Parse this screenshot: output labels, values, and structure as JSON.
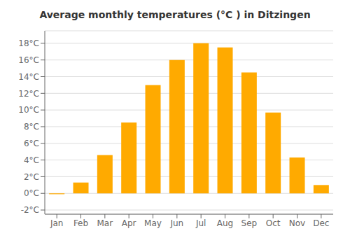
{
  "chart_data": {
    "type": "bar",
    "title": "Average monthly temperatures (°C ) in Ditzingen",
    "categories": [
      "Jan",
      "Feb",
      "Mar",
      "Apr",
      "May",
      "Jun",
      "Jul",
      "Aug",
      "Sep",
      "Oct",
      "Nov",
      "Dec"
    ],
    "values": [
      -0.1,
      1.3,
      4.6,
      8.5,
      13.0,
      16.0,
      18.0,
      17.5,
      14.5,
      9.7,
      4.3,
      1.0
    ],
    "color": "#FFAA00",
    "ylim": [
      -2.5,
      19.5
    ],
    "yticks": [
      {
        "value": -2,
        "label": "-2°C"
      },
      {
        "value": 0,
        "label": "0°C"
      },
      {
        "value": 2,
        "label": "2°C"
      },
      {
        "value": 4,
        "label": "4°C"
      },
      {
        "value": 6,
        "label": "6°C"
      },
      {
        "value": 8,
        "label": "8°C"
      },
      {
        "value": 10,
        "label": "10°C"
      },
      {
        "value": 12,
        "label": "12°C"
      },
      {
        "value": 14,
        "label": "14°C"
      },
      {
        "value": 16,
        "label": "16°C"
      },
      {
        "value": 18,
        "label": "18°C"
      }
    ],
    "grid": true
  }
}
